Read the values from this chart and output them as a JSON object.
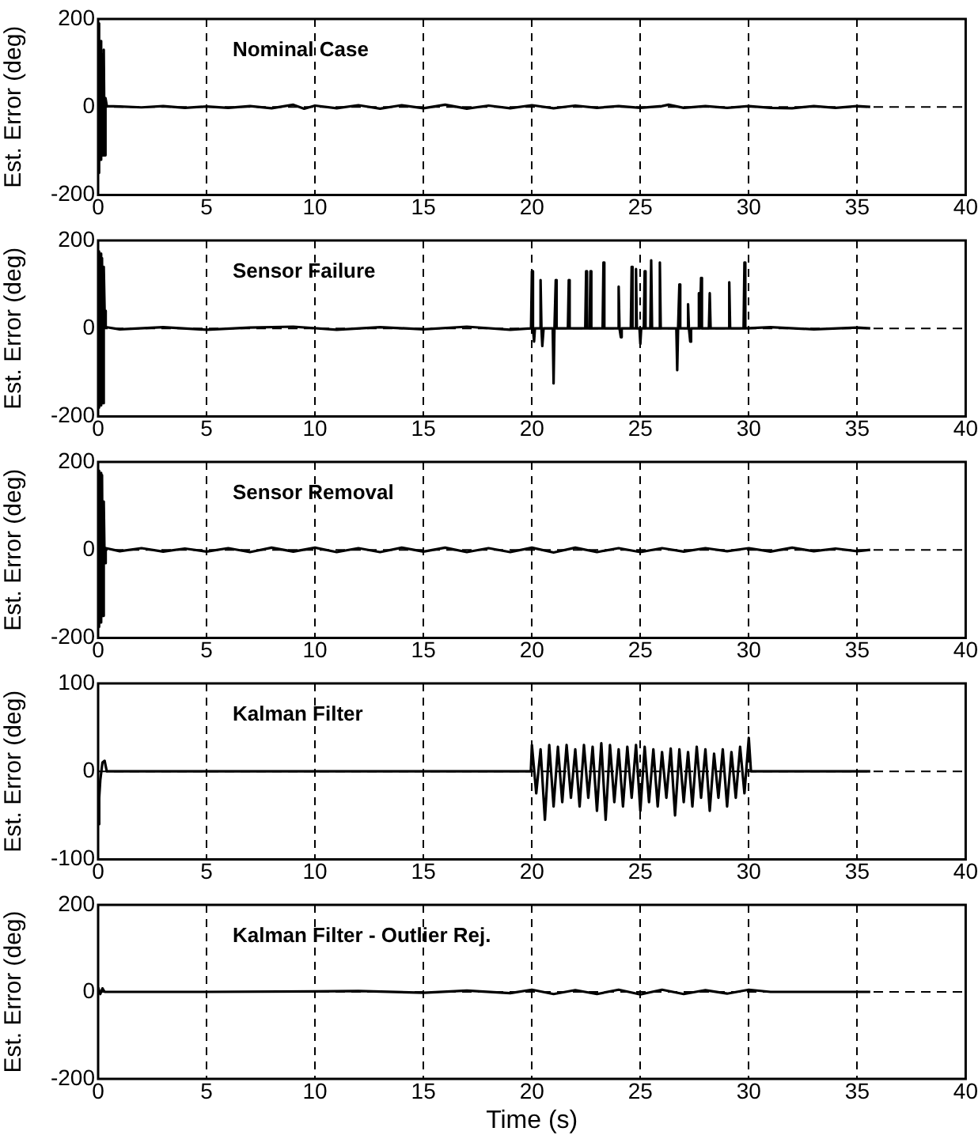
{
  "chart_data": [
    {
      "type": "line",
      "title": "Nominal Case",
      "ylabel": "Est. Error (deg)",
      "color": "#000000",
      "marker": "none",
      "line_style": "solid",
      "grid": "x",
      "xlim": [
        0,
        40
      ],
      "xticks": [
        0,
        5,
        10,
        15,
        20,
        25,
        30,
        35,
        40
      ],
      "ylim": [
        -200,
        200
      ],
      "yticks": [
        -200,
        0,
        200
      ],
      "ref_lines": [
        {
          "axis": "y",
          "value": 0,
          "line_style": "dashed"
        }
      ],
      "x": [
        0,
        0.03,
        0.06,
        0.1,
        0.14,
        0.18,
        0.22,
        0.26,
        0.3,
        0.34,
        0.4,
        1,
        2,
        3,
        4,
        5,
        6,
        7,
        8,
        9,
        9.5,
        10,
        11,
        12,
        13,
        14,
        15,
        16,
        17,
        18,
        19,
        20,
        21,
        22,
        23,
        24,
        25,
        26,
        26.3,
        27,
        28,
        29,
        30,
        31,
        32,
        33,
        34,
        35,
        35.6
      ],
      "values": [
        -150,
        190,
        -130,
        150,
        -120,
        120,
        -110,
        130,
        -110,
        20,
        2,
        1,
        -1,
        2,
        -2,
        1,
        -2,
        2,
        -3,
        5,
        -4,
        3,
        -3,
        4,
        -4,
        4,
        -3,
        5,
        -4,
        3,
        -3,
        4,
        -3,
        3,
        -2,
        2,
        -2,
        2,
        5,
        -2,
        2,
        -2,
        2,
        -2,
        -3,
        2,
        -2,
        2,
        0
      ]
    },
    {
      "type": "line",
      "title": "Sensor Failure",
      "ylabel": "Est. Error (deg)",
      "color": "#000000",
      "marker": "none",
      "line_style": "solid",
      "grid": "x",
      "xlim": [
        0,
        40
      ],
      "xticks": [
        0,
        5,
        10,
        15,
        20,
        25,
        30,
        35,
        40
      ],
      "ylim": [
        -200,
        200
      ],
      "yticks": [
        -200,
        0,
        200
      ],
      "ref_lines": [
        {
          "axis": "y",
          "value": 0,
          "line_style": "dashed"
        }
      ],
      "x": [
        0,
        0.03,
        0.06,
        0.1,
        0.14,
        0.18,
        0.22,
        0.26,
        0.3,
        0.35,
        1,
        3,
        5,
        7,
        9,
        11,
        13,
        15,
        17,
        19,
        19.96,
        20,
        20.04,
        20.06,
        20.1,
        20.14,
        20.36,
        20.4,
        20.44,
        20.46,
        20.5,
        20.54,
        20.96,
        21,
        21.04,
        21.06,
        21.1,
        21.14,
        21.66,
        21.7,
        21.74,
        22.46,
        22.5,
        22.54,
        22.66,
        22.7,
        22.74,
        23.26,
        23.3,
        23.34,
        23.96,
        24,
        24.04,
        24.06,
        24.1,
        24.14,
        24.56,
        24.6,
        24.64,
        24.76,
        24.8,
        24.84,
        24.96,
        25,
        25.04,
        25.16,
        25.2,
        25.24,
        25.46,
        25.5,
        25.54,
        25.86,
        25.9,
        25.94,
        26.66,
        26.7,
        26.74,
        26.76,
        26.8,
        26.84,
        27.16,
        27.2,
        27.24,
        27.26,
        27.3,
        27.34,
        27.66,
        27.7,
        27.74,
        27.76,
        27.8,
        27.84,
        28.16,
        28.2,
        28.24,
        29.06,
        29.1,
        29.14,
        29.76,
        29.8,
        29.84,
        31,
        33,
        35,
        35.6
      ],
      "values": [
        -160,
        175,
        -180,
        170,
        -175,
        160,
        -170,
        140,
        40,
        3,
        -2,
        3,
        -3,
        2,
        4,
        -3,
        3,
        -2,
        4,
        -3,
        0,
        130,
        0,
        0,
        -30,
        0,
        0,
        110,
        0,
        0,
        -40,
        0,
        0,
        -125,
        0,
        0,
        110,
        0,
        0,
        110,
        0,
        0,
        130,
        0,
        0,
        130,
        0,
        0,
        150,
        0,
        0,
        95,
        0,
        0,
        -20,
        0,
        0,
        140,
        0,
        0,
        135,
        0,
        0,
        -35,
        0,
        0,
        130,
        0,
        0,
        155,
        0,
        0,
        150,
        0,
        0,
        -95,
        0,
        0,
        100,
        0,
        0,
        55,
        0,
        0,
        -30,
        0,
        0,
        80,
        0,
        0,
        115,
        0,
        0,
        80,
        0,
        0,
        105,
        0,
        0,
        150,
        0,
        3,
        -2,
        2,
        0
      ]
    },
    {
      "type": "line",
      "title": "Sensor Removal",
      "ylabel": "Est. Error (deg)",
      "color": "#000000",
      "marker": "none",
      "line_style": "solid",
      "grid": "x",
      "xlim": [
        0,
        40
      ],
      "xticks": [
        0,
        5,
        10,
        15,
        20,
        25,
        30,
        35,
        40
      ],
      "ylim": [
        -200,
        200
      ],
      "yticks": [
        -200,
        0,
        200
      ],
      "ref_lines": [
        {
          "axis": "y",
          "value": 0,
          "line_style": "dashed"
        }
      ],
      "x": [
        0,
        0.03,
        0.06,
        0.1,
        0.14,
        0.18,
        0.22,
        0.26,
        0.3,
        0.35,
        1,
        2,
        3,
        4,
        5,
        6,
        7,
        8,
        9,
        10,
        11,
        12,
        13,
        14,
        15,
        16,
        17,
        18,
        19,
        20,
        21,
        22,
        23,
        24,
        25,
        26,
        27,
        28,
        29,
        30,
        31,
        32,
        33,
        34,
        35,
        35.6
      ],
      "values": [
        -170,
        180,
        -175,
        175,
        -165,
        170,
        -150,
        110,
        -30,
        4,
        -3,
        4,
        -4,
        3,
        -4,
        4,
        -5,
        5,
        -4,
        5,
        -5,
        4,
        -5,
        5,
        -4,
        5,
        -5,
        4,
        -5,
        5,
        -6,
        5,
        -5,
        4,
        -5,
        4,
        -4,
        4,
        -3,
        4,
        -4,
        5,
        -3,
        3,
        -3,
        0
      ]
    },
    {
      "type": "line",
      "title": "Kalman Filter",
      "ylabel": "Est. Error (deg)",
      "color": "#000000",
      "marker": "none",
      "line_style": "solid",
      "grid": "x",
      "xlim": [
        0,
        40
      ],
      "xticks": [
        0,
        5,
        10,
        15,
        20,
        25,
        30,
        35,
        40
      ],
      "ylim": [
        -100,
        100
      ],
      "yticks": [
        -100,
        0,
        100
      ],
      "ref_lines": [
        {
          "axis": "y",
          "value": 0,
          "line_style": "dashed"
        }
      ],
      "x": [
        0,
        0.05,
        0.1,
        0.2,
        0.3,
        0.4,
        1,
        5,
        10,
        15,
        19.95,
        20,
        20.2,
        20.4,
        20.6,
        20.8,
        21,
        21.2,
        21.4,
        21.6,
        21.8,
        22,
        22.2,
        22.4,
        22.6,
        22.8,
        23,
        23.2,
        23.4,
        23.6,
        23.8,
        24,
        24.2,
        24.4,
        24.6,
        24.8,
        25,
        25.2,
        25.4,
        25.6,
        25.8,
        26,
        26.2,
        26.4,
        26.6,
        26.8,
        27,
        27.2,
        27.4,
        27.6,
        27.8,
        28,
        28.2,
        28.4,
        28.6,
        28.8,
        29,
        29.2,
        29.4,
        29.6,
        29.8,
        30,
        30.1,
        32,
        35.6
      ],
      "values": [
        -60,
        -30,
        -10,
        10,
        12,
        0,
        0,
        0,
        0,
        0,
        0,
        30,
        -25,
        25,
        -55,
        30,
        -40,
        28,
        -35,
        30,
        -30,
        25,
        -40,
        30,
        -30,
        28,
        -45,
        32,
        -55,
        30,
        -35,
        25,
        -40,
        28,
        -30,
        30,
        -45,
        28,
        -35,
        25,
        -40,
        22,
        -30,
        26,
        -50,
        25,
        -35,
        22,
        -40,
        28,
        -30,
        25,
        -45,
        20,
        -30,
        25,
        -40,
        22,
        -30,
        28,
        -25,
        38,
        0,
        0,
        0
      ]
    },
    {
      "type": "line",
      "title": "Kalman Filter - Outlier Rej.",
      "ylabel": "Est. Error (deg)",
      "xlabel": "Time (s)",
      "color": "#000000",
      "marker": "none",
      "line_style": "solid",
      "grid": "x",
      "xlim": [
        0,
        40
      ],
      "xticks": [
        0,
        5,
        10,
        15,
        20,
        25,
        30,
        35,
        40
      ],
      "ylim": [
        -200,
        200
      ],
      "yticks": [
        -200,
        0,
        200
      ],
      "ref_lines": [
        {
          "axis": "y",
          "value": 0,
          "line_style": "dashed"
        }
      ],
      "x": [
        0,
        0.1,
        0.2,
        0.3,
        1,
        5,
        10,
        12,
        15,
        17,
        19,
        20,
        21,
        22,
        23,
        24,
        25,
        26,
        27,
        28,
        29,
        30,
        31,
        35.6
      ],
      "values": [
        10,
        -5,
        8,
        0,
        0,
        0,
        1,
        2,
        -2,
        3,
        -3,
        5,
        -5,
        4,
        -5,
        5,
        -6,
        5,
        -5,
        4,
        -4,
        5,
        0,
        0
      ]
    }
  ]
}
